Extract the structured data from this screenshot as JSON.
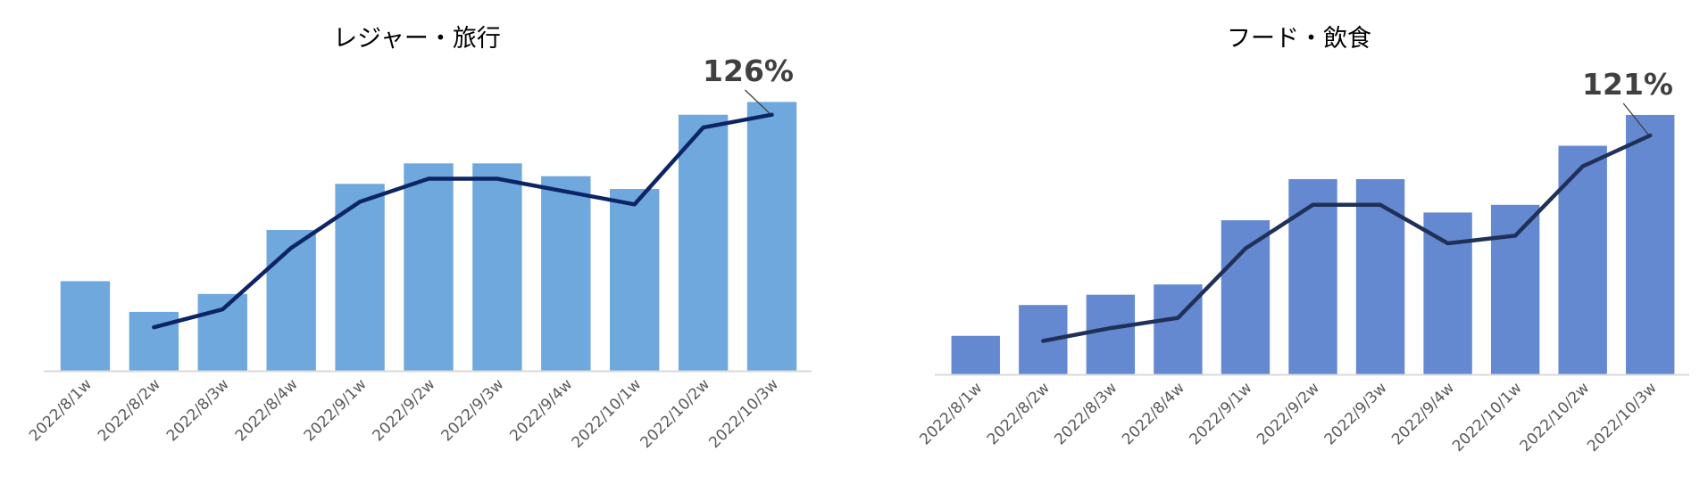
{
  "chart_data": [
    {
      "type": "bar",
      "title": "レジャー・旅行",
      "categories": [
        "2022/8/1w",
        "2022/8/2w",
        "2022/8/3w",
        "2022/8/4w",
        "2022/9/1w",
        "2022/9/2w",
        "2022/9/3w",
        "2022/9/4w",
        "2022/10/1w",
        "2022/10/2w",
        "2022/10/3w"
      ],
      "series": [
        {
          "type": "bar",
          "values": [
            35,
            23,
            30,
            55,
            73,
            81,
            81,
            76,
            71,
            100,
            105
          ]
        },
        {
          "type": "line",
          "values": [
            null,
            17,
            24,
            48,
            66,
            75,
            75,
            70,
            65,
            95,
            100
          ]
        }
      ],
      "ylim": [
        0,
        110
      ],
      "annotation": "126%",
      "bar_color": "#6FA8DC",
      "line_color": "#0D2566"
    },
    {
      "type": "bar",
      "title": "フード・飲食",
      "categories": [
        "2022/8/1w",
        "2022/8/2w",
        "2022/8/3w",
        "2022/8/4w",
        "2022/9/1w",
        "2022/9/2w",
        "2022/9/3w",
        "2022/9/4w",
        "2022/10/1w",
        "2022/10/2w",
        "2022/10/3w"
      ],
      "series": [
        {
          "type": "bar",
          "values": [
            15,
            27,
            31,
            35,
            60,
            76,
            76,
            63,
            66,
            89,
            101
          ]
        },
        {
          "type": "line",
          "values": [
            null,
            13,
            18,
            22,
            49,
            66,
            66,
            51,
            54,
            81,
            93
          ]
        }
      ],
      "ylim": [
        0,
        110
      ],
      "annotation": "121%",
      "bar_color": "#6589D1",
      "line_color": "#1F3158"
    }
  ],
  "axis_color": "#D9D9D9",
  "annotation_color": "#404040"
}
